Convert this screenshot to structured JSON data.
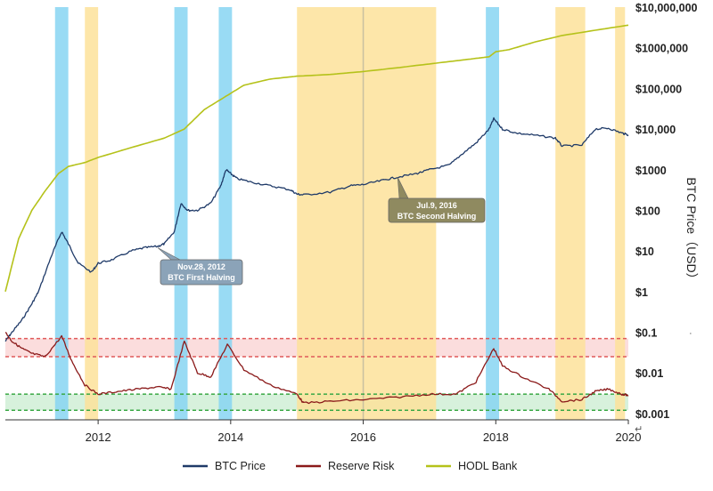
{
  "chart_data": {
    "type": "line",
    "y_axis": {
      "label": "BTC Price（USD）",
      "scale": "log",
      "range": [
        0.0007,
        10000000
      ],
      "ticks": [
        {
          "value": 10000000,
          "label": "$10,000,000"
        },
        {
          "value": 1000000,
          "label": "$1000,000"
        },
        {
          "value": 100000,
          "label": "$100,000"
        },
        {
          "value": 10000,
          "label": "$10,000"
        },
        {
          "value": 1000,
          "label": "$1000"
        },
        {
          "value": 100,
          "label": "$100"
        },
        {
          "value": 10,
          "label": "$10"
        },
        {
          "value": 1,
          "label": "$1"
        },
        {
          "value": 0.1,
          "label": "$0.1"
        },
        {
          "value": 0.01,
          "label": "$0.01"
        },
        {
          "value": 0.001,
          "label": "$0.001"
        }
      ]
    },
    "x_axis": {
      "range": [
        2010.6,
        2020.0
      ],
      "ticks": [
        {
          "value": 2012,
          "label": "2012"
        },
        {
          "value": 2014,
          "label": "2014"
        },
        {
          "value": 2016,
          "label": "2016"
        },
        {
          "value": 2018,
          "label": "2018"
        },
        {
          "value": 2020,
          "label": "2020"
        }
      ],
      "end_mark": "↵"
    },
    "grid": false,
    "legend_position": "bottom",
    "legend": [
      {
        "name": "BTC Price",
        "color": "#1f3a68"
      },
      {
        "name": "Reserve Risk",
        "color": "#8b1a1a"
      },
      {
        "name": "HODL Bank",
        "color": "#b5c21a"
      }
    ],
    "series": [
      {
        "name": "BTC Price",
        "color": "#1f3a68",
        "x": [
          2010.6,
          2010.7,
          2010.85,
          2011.0,
          2011.1,
          2011.3,
          2011.45,
          2011.55,
          2011.7,
          2011.9,
          2012.0,
          2012.2,
          2012.5,
          2012.7,
          2012.9,
          2013.0,
          2013.15,
          2013.25,
          2013.35,
          2013.5,
          2013.7,
          2013.85,
          2013.93,
          2014.0,
          2014.1,
          2014.3,
          2014.6,
          2014.9,
          2015.0,
          2015.1,
          2015.5,
          2015.8,
          2016.0,
          2016.3,
          2016.5,
          2016.8,
          2017.0,
          2017.3,
          2017.5,
          2017.7,
          2017.9,
          2017.97,
          2018.1,
          2018.3,
          2018.6,
          2018.9,
          2019.0,
          2019.3,
          2019.5,
          2019.7,
          2019.9,
          2020.0
        ],
        "y": [
          0.06,
          0.1,
          0.2,
          0.5,
          1,
          8,
          30,
          15,
          5,
          3,
          5,
          6,
          10,
          12,
          13,
          15,
          30,
          150,
          100,
          100,
          150,
          400,
          1000,
          800,
          600,
          500,
          400,
          320,
          250,
          240,
          280,
          400,
          430,
          550,
          650,
          800,
          1000,
          1300,
          2500,
          4500,
          10000,
          18000,
          10000,
          8000,
          7000,
          6000,
          3800,
          4000,
          10000,
          10500,
          8000,
          7200
        ]
      },
      {
        "name": "Reserve Risk",
        "color": "#8b1a1a",
        "x": [
          2010.6,
          2010.7,
          2010.85,
          2011.0,
          2011.2,
          2011.45,
          2011.6,
          2011.8,
          2012.0,
          2012.3,
          2012.6,
          2012.9,
          2013.1,
          2013.3,
          2013.5,
          2013.7,
          2013.95,
          2014.2,
          2014.6,
          2015.0,
          2015.1,
          2015.5,
          2016.0,
          2016.5,
          2017.0,
          2017.4,
          2017.7,
          2017.97,
          2018.1,
          2018.4,
          2018.8,
          2019.0,
          2019.3,
          2019.5,
          2019.7,
          2019.9,
          2020.0
        ],
        "y": [
          0.1,
          0.06,
          0.04,
          0.03,
          0.025,
          0.08,
          0.02,
          0.005,
          0.003,
          0.0035,
          0.004,
          0.0045,
          0.004,
          0.06,
          0.01,
          0.008,
          0.05,
          0.012,
          0.005,
          0.003,
          0.0018,
          0.002,
          0.0022,
          0.0025,
          0.003,
          0.003,
          0.006,
          0.04,
          0.015,
          0.008,
          0.004,
          0.002,
          0.0022,
          0.0035,
          0.004,
          0.003,
          0.0028
        ]
      },
      {
        "name": "HODL Bank",
        "color": "#b5c21a",
        "x": [
          2010.6,
          2010.8,
          2011.0,
          2011.2,
          2011.4,
          2011.55,
          2011.8,
          2012.0,
          2012.5,
          2013.0,
          2013.3,
          2013.6,
          2013.9,
          2014.2,
          2014.6,
          2015.0,
          2015.5,
          2016.0,
          2016.5,
          2017.0,
          2017.5,
          2017.9,
          2018.0,
          2018.2,
          2018.6,
          2019.0,
          2019.5,
          2020.0
        ],
        "y": [
          1,
          20,
          100,
          300,
          800,
          1200,
          1500,
          2000,
          3500,
          6000,
          10000,
          30000,
          60000,
          120000,
          170000,
          200000,
          220000,
          260000,
          320000,
          400000,
          500000,
          600000,
          800000,
          900000,
          1400000,
          2000000,
          2700000,
          3600000
        ]
      }
    ],
    "bands": [
      {
        "kind": "blue",
        "x0": 2011.35,
        "x1": 2011.55
      },
      {
        "kind": "blue",
        "x0": 2013.15,
        "x1": 2013.35
      },
      {
        "kind": "blue",
        "x0": 2013.82,
        "x1": 2014.02
      },
      {
        "kind": "blue",
        "x0": 2017.85,
        "x1": 2018.05
      },
      {
        "kind": "yellow",
        "x0": 2011.8,
        "x1": 2012.0
      },
      {
        "kind": "yellow",
        "x0": 2015.0,
        "x1": 2017.1
      },
      {
        "kind": "yellow",
        "x0": 2018.9,
        "x1": 2019.35
      },
      {
        "kind": "yellow",
        "x0": 2019.8,
        "x1": 2019.95
      }
    ],
    "reference_lines": [
      {
        "kind": "red",
        "y": 0.07
      },
      {
        "kind": "red",
        "y": 0.025
      },
      {
        "kind": "green",
        "y": 0.003
      },
      {
        "kind": "green",
        "y": 0.0012
      }
    ],
    "shaded_zones": [
      {
        "kind": "red",
        "y0": 0.025,
        "y1": 0.07
      },
      {
        "kind": "green",
        "y0": 0.0012,
        "y1": 0.003
      }
    ],
    "divider_x": 2016.0,
    "annotations": [
      {
        "date_label": "Nov.28, 2012",
        "text": "BTC First Halving",
        "x": 2012.9,
        "y": 12
      },
      {
        "date_label": "Jul.9, 2016",
        "text": "BTC Second Halving",
        "x": 2016.52,
        "y": 650
      }
    ],
    "stray_mark": "·"
  },
  "colors": {
    "axis": "#333333",
    "blue_band": "#87d5f2",
    "yellow_band": "#fde29a",
    "red_line": "#e05a5a",
    "red_zone": "#fad2d2",
    "green_line": "#3aa845",
    "green_zone": "#c9ecd0",
    "divider": "#c9c0a0",
    "callout_blue": "#8ba3b8",
    "callout_olive": "#8f8a60"
  }
}
